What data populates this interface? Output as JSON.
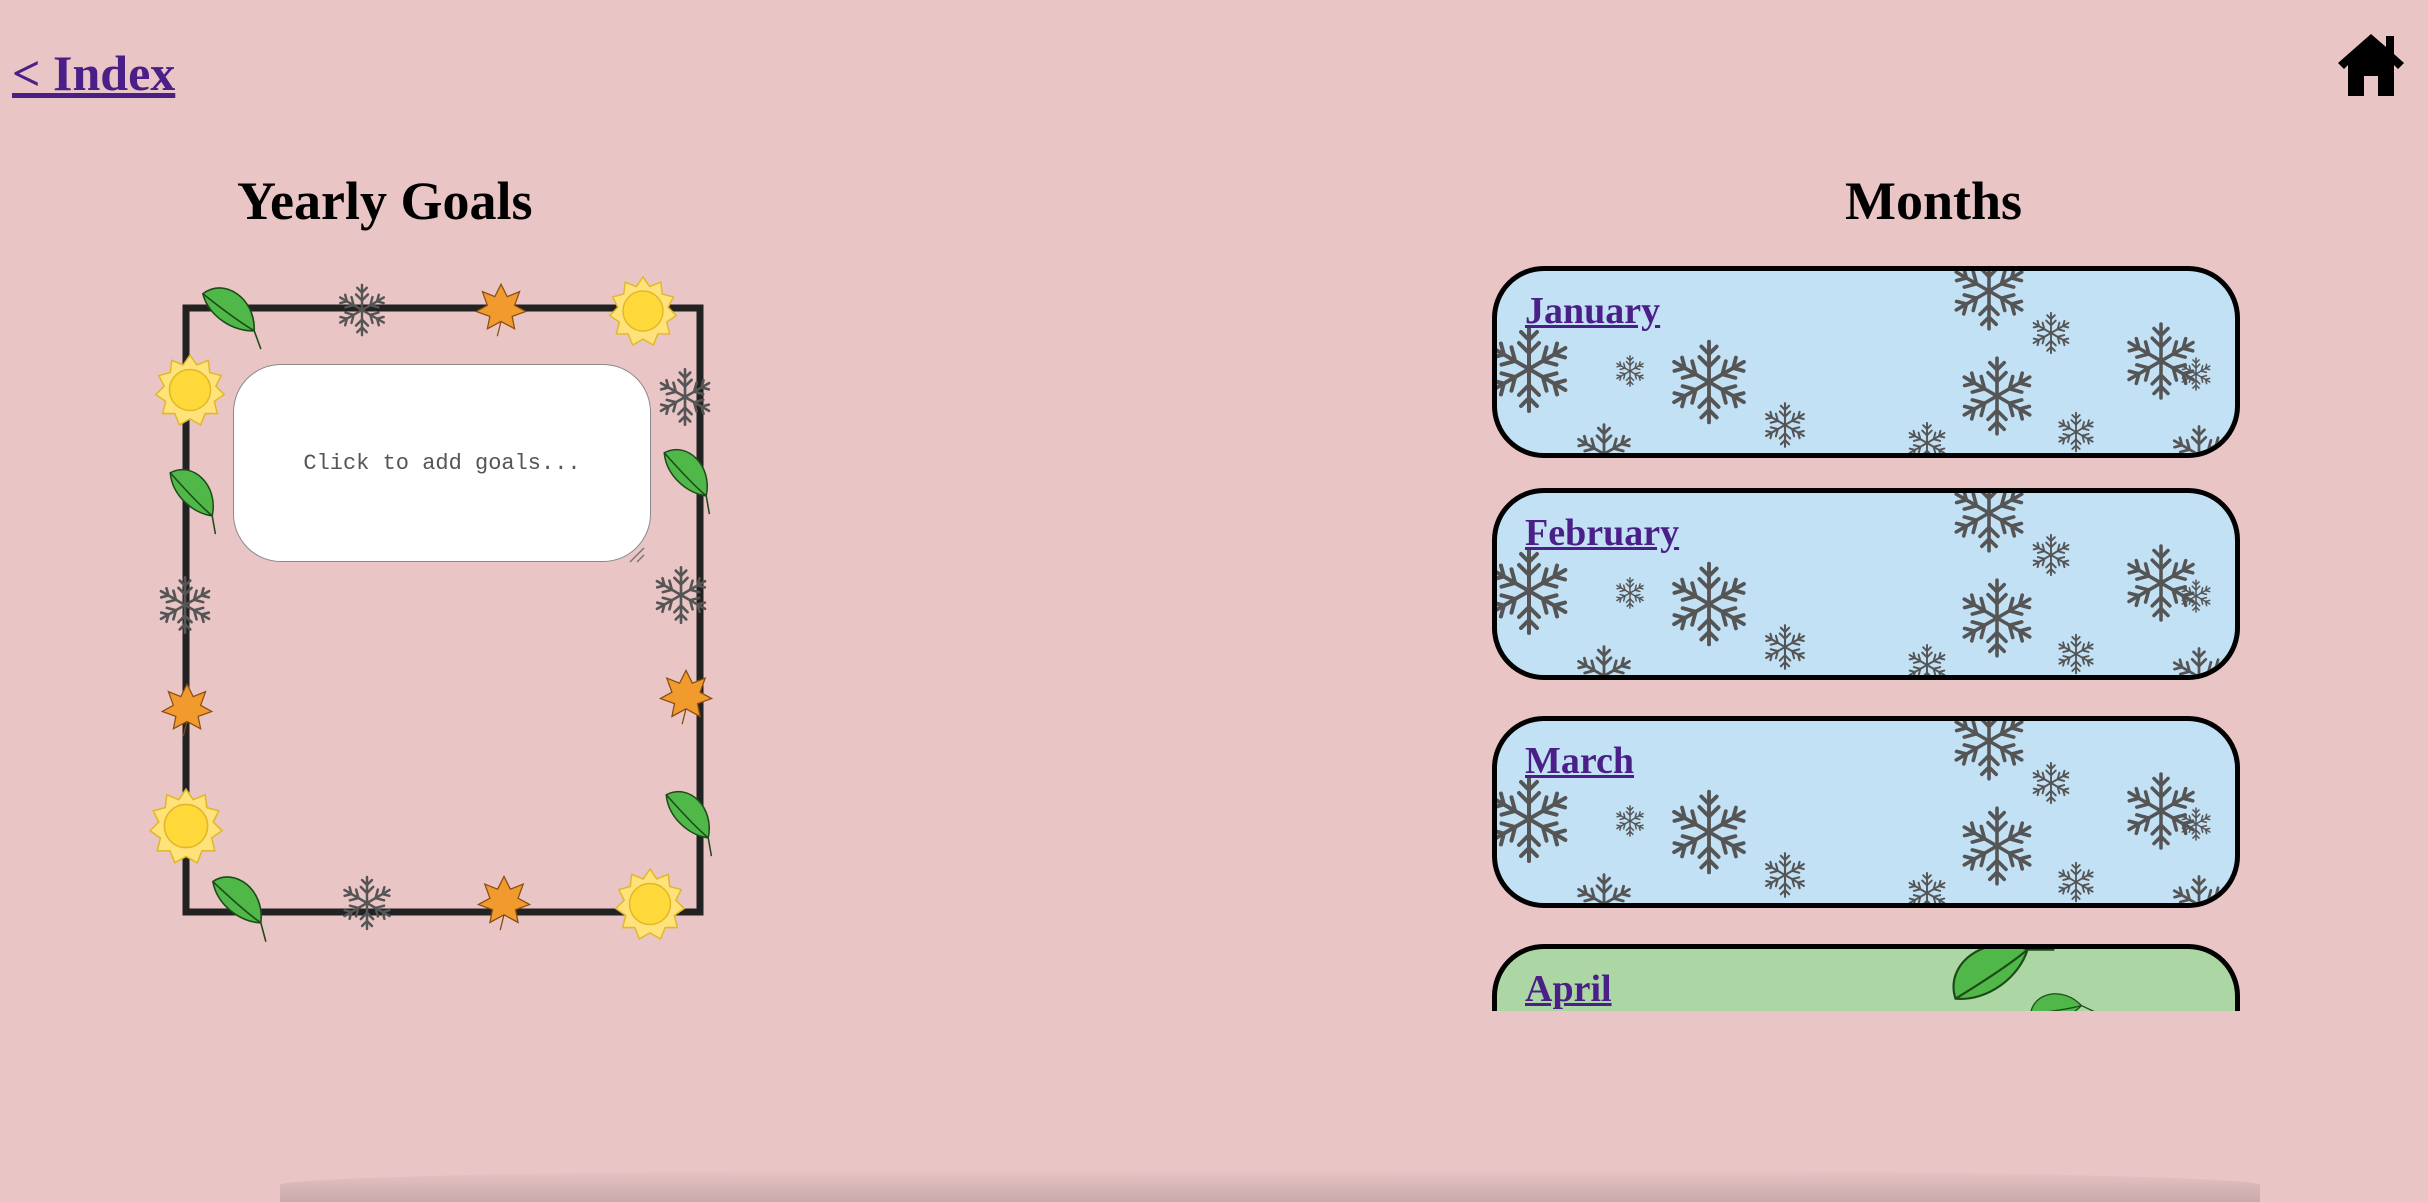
{
  "nav": {
    "back_label": "< Index",
    "home_icon": "home-icon"
  },
  "goals": {
    "title": "Yearly Goals",
    "placeholder": "Click to add goals...",
    "frame_decorations": [
      "leaf-icon",
      "snowflake-icon",
      "maple-leaf-icon",
      "sun-icon"
    ]
  },
  "months": {
    "title": "Months",
    "items": [
      {
        "label": "January",
        "theme": "winter"
      },
      {
        "label": "February",
        "theme": "winter"
      },
      {
        "label": "March",
        "theme": "winter"
      },
      {
        "label": "April",
        "theme": "spring"
      }
    ]
  },
  "colors": {
    "background": "#eac5c6",
    "link": "#4a1f88",
    "winter_card": "#c3e1f5",
    "spring_card": "#acd7a5",
    "leaf": "#4fb848",
    "maple": "#f19a2e",
    "sun": "#ffd93a"
  }
}
